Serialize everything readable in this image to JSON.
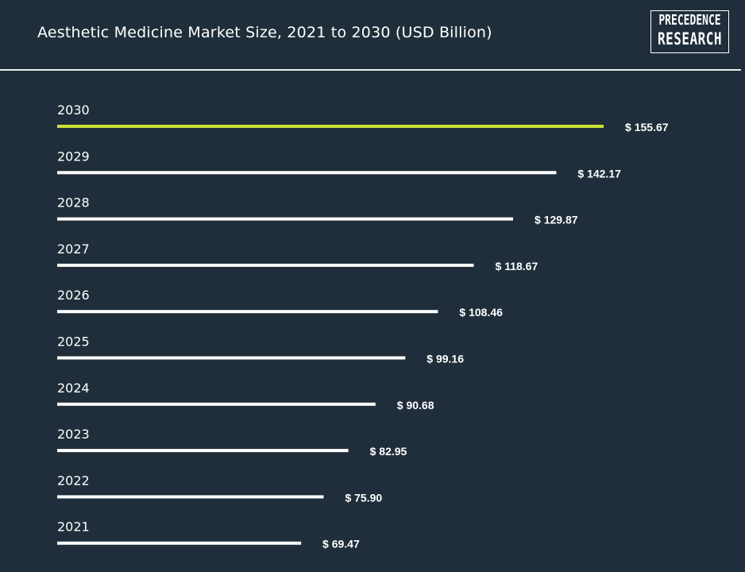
{
  "header": {
    "logo_line1": "PRECEDENCE",
    "logo_line2": "RESEARCH"
  },
  "colors": {
    "background": "#1f2e3a",
    "bar": "#ffffff",
    "highlight_bar": "#c8e03a",
    "text": "#ffffff"
  },
  "chart_data": {
    "type": "bar",
    "orientation": "horizontal",
    "title": "Aesthetic Medicine Market Size, 2021 to 2030 (USD Billion)",
    "categories": [
      "2030",
      "2029",
      "2028",
      "2027",
      "2026",
      "2025",
      "2024",
      "2023",
      "2022",
      "2021"
    ],
    "values": [
      155.67,
      142.17,
      129.87,
      118.67,
      108.46,
      99.16,
      90.68,
      82.95,
      75.9,
      69.47
    ],
    "value_labels": [
      "$ 155.67",
      "$ 142.17",
      "$ 129.87",
      "$ 118.67",
      "$ 108.46",
      "$ 99.16",
      "$ 90.68",
      "$ 82.95",
      "$ 75.90",
      "$ 69.47"
    ],
    "highlight_category": "2030",
    "xlabel": "",
    "ylabel": "",
    "grid": false,
    "legend": "none"
  }
}
